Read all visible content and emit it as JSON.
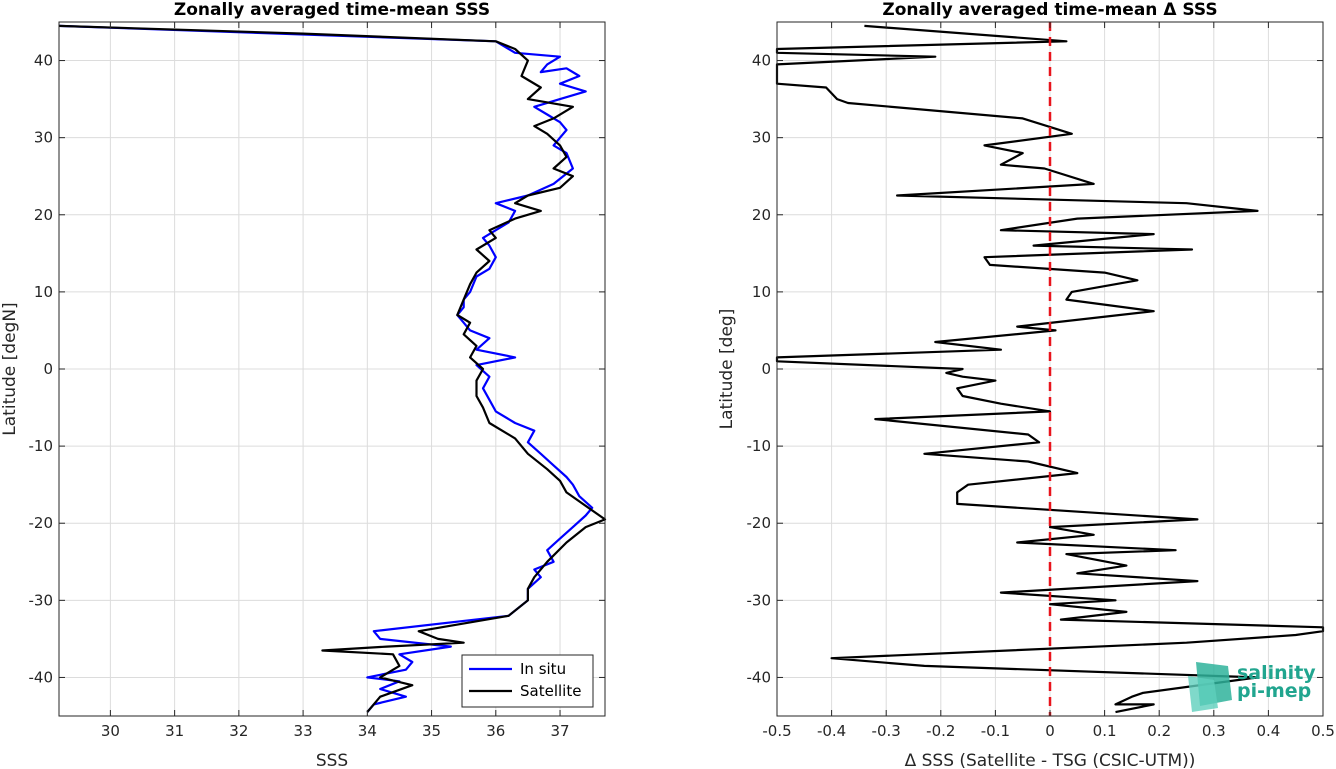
{
  "colors": {
    "in_situ": "#0000ff",
    "satellite": "#000000",
    "zero_line": "#e8141c",
    "grid": "#dcdcdc",
    "logo": "#21a58f"
  },
  "logo": {
    "line1": "salinity",
    "line2": "pi-mep"
  },
  "chart_data": [
    {
      "type": "line",
      "title": "Zonally averaged time-mean SSS",
      "xlabel": "SSS",
      "ylabel": "Latitude [degN]",
      "xlim": [
        29.2,
        37.7
      ],
      "ylim": [
        -45,
        45
      ],
      "xticks": [
        30,
        31,
        32,
        33,
        34,
        35,
        36,
        37
      ],
      "yticks": [
        -40,
        -30,
        -20,
        -10,
        0,
        10,
        20,
        30,
        40
      ],
      "xtick_labels": [
        "30",
        "31",
        "32",
        "33",
        "34",
        "35",
        "36",
        "37"
      ],
      "ytick_labels": [
        "-40",
        "-30",
        "-20",
        "-10",
        "0",
        "10",
        "20",
        "30",
        "40"
      ],
      "grid": true,
      "legend": {
        "placement": "bottom-right",
        "entries": [
          "In situ",
          "Satellite"
        ]
      },
      "series": [
        {
          "name": "In situ",
          "color": "#0000ff",
          "x": [
            29.2,
            36.0,
            36.3,
            37.0,
            36.8,
            36.7,
            37.1,
            37.3,
            37.0,
            37.4,
            37.0,
            36.6,
            36.8,
            37.0,
            37.1,
            37.0,
            36.9,
            37.1,
            37.2,
            36.9,
            36.5,
            36.0,
            36.3,
            36.2,
            36.0,
            35.8,
            35.9,
            36.0,
            35.9,
            35.7,
            35.6,
            35.5,
            35.5,
            35.4,
            35.5,
            35.6,
            35.9,
            35.7,
            36.3,
            35.7,
            35.9,
            35.8,
            35.9,
            36.0,
            36.3,
            36.6,
            36.5,
            36.7,
            36.9,
            37.1,
            37.2,
            37.3,
            37.5,
            37.4,
            37.2,
            37.0,
            36.8,
            36.9,
            36.6,
            36.7,
            36.5,
            36.5,
            36.2,
            34.1,
            34.2,
            35.3,
            34.5,
            34.7,
            34.6,
            34.0,
            34.5,
            34.2,
            34.6,
            34.1,
            34.0
          ],
          "y": [
            44.5,
            42.5,
            41.0,
            40.5,
            39.5,
            38.5,
            39.0,
            38.0,
            37.0,
            36.0,
            35.0,
            34.0,
            33.0,
            32.0,
            31.0,
            30.0,
            29.0,
            28.0,
            26.0,
            24.0,
            22.5,
            21.5,
            20.5,
            19.0,
            18.0,
            17.0,
            16.0,
            14.5,
            13.0,
            12.0,
            10.0,
            9.0,
            8.0,
            7.0,
            6.0,
            5.0,
            4.0,
            2.5,
            1.5,
            0.5,
            -1.0,
            -2.5,
            -4.0,
            -5.5,
            -7.0,
            -8.0,
            -9.5,
            -11.0,
            -12.5,
            -14.0,
            -15.0,
            -16.5,
            -18.0,
            -19.0,
            -20.5,
            -22.0,
            -23.5,
            -25.0,
            -26.0,
            -27.0,
            -28.5,
            -30.0,
            -32.0,
            -34.0,
            -35.0,
            -36.0,
            -37.0,
            -38.0,
            -39.0,
            -40.0,
            -40.5,
            -41.5,
            -42.5,
            -43.5,
            -44.5
          ]
        },
        {
          "name": "Satellite",
          "color": "#000000",
          "x": [
            29.2,
            33.0,
            36.0,
            36.3,
            36.5,
            36.4,
            36.7,
            36.5,
            37.2,
            36.9,
            36.6,
            36.8,
            37.0,
            37.1,
            36.9,
            37.2,
            37.0,
            36.5,
            36.3,
            36.7,
            36.3,
            35.9,
            36.0,
            35.7,
            35.9,
            35.7,
            35.6,
            35.5,
            35.4,
            35.6,
            35.5,
            35.7,
            35.6,
            35.8,
            35.7,
            35.7,
            35.8,
            35.9,
            36.3,
            36.5,
            36.8,
            37.0,
            37.1,
            37.7,
            37.4,
            37.1,
            36.8,
            36.6,
            36.5,
            36.5,
            36.2,
            34.8,
            35.1,
            35.5,
            34.3,
            33.3,
            34.4,
            34.5,
            34.2,
            34.7,
            34.2,
            34.0
          ],
          "y": [
            44.5,
            43.5,
            42.5,
            41.5,
            40.0,
            38.0,
            36.5,
            35.0,
            34.0,
            32.5,
            31.5,
            30.5,
            29.0,
            27.5,
            26.0,
            25.0,
            23.5,
            22.5,
            21.5,
            20.5,
            19.5,
            18.0,
            17.0,
            15.5,
            14.0,
            12.5,
            11.0,
            9.0,
            7.0,
            6.0,
            4.5,
            3.0,
            1.5,
            0.0,
            -1.5,
            -3.5,
            -5.0,
            -7.0,
            -9.0,
            -11.0,
            -13.0,
            -14.5,
            -16.0,
            -19.5,
            -20.5,
            -22.5,
            -25.0,
            -27.0,
            -28.5,
            -30.0,
            -32.0,
            -34.0,
            -35.0,
            -35.5,
            -36.0,
            -36.5,
            -37.0,
            -38.5,
            -40.0,
            -41.0,
            -42.5,
            -44.5
          ]
        }
      ]
    },
    {
      "type": "line",
      "title": "Zonally averaged time-mean Δ SSS",
      "xlabel": "Δ SSS (Satellite - TSG (CSIC-UTM))",
      "ylabel": "Latitude [deg]",
      "xlim": [
        -0.5,
        0.5
      ],
      "ylim": [
        -45,
        45
      ],
      "xticks": [
        -0.5,
        -0.4,
        -0.3,
        -0.2,
        -0.1,
        0,
        0.1,
        0.2,
        0.3,
        0.4,
        0.5
      ],
      "yticks": [
        -40,
        -30,
        -20,
        -10,
        0,
        10,
        20,
        30,
        40
      ],
      "xtick_labels": [
        "-0.5",
        "-0.4",
        "-0.3",
        "-0.2",
        "-0.1",
        "0",
        "0.1",
        "0.2",
        "0.3",
        "0.4",
        "0.5"
      ],
      "ytick_labels": [
        "-40",
        "-30",
        "-20",
        "-10",
        "0",
        "10",
        "20",
        "30",
        "40"
      ],
      "grid": true,
      "reference_line": {
        "x": 0,
        "style": "dashed",
        "color": "#e8141c"
      },
      "series": [
        {
          "color": "#000000",
          "x": [
            -0.34,
            0.03,
            -0.5,
            -0.5,
            -0.21,
            -0.5,
            -0.5,
            -0.41,
            -0.39,
            -0.37,
            -0.05,
            0.04,
            -0.12,
            -0.05,
            -0.09,
            -0.01,
            0.08,
            -0.28,
            0.25,
            0.38,
            0.05,
            -0.09,
            0.19,
            -0.03,
            0.26,
            -0.12,
            -0.11,
            0.1,
            0.16,
            0.04,
            0.03,
            0.19,
            -0.06,
            0.01,
            -0.21,
            -0.09,
            -0.5,
            -0.5,
            -0.16,
            -0.19,
            -0.16,
            -0.1,
            -0.17,
            -0.16,
            -0.09,
            0.0,
            -0.32,
            -0.04,
            -0.02,
            -0.23,
            -0.04,
            0.05,
            -0.15,
            -0.17,
            -0.17,
            0.27,
            0.0,
            0.08,
            -0.06,
            0.23,
            0.03,
            0.14,
            0.05,
            0.27,
            -0.09,
            0.12,
            0.0,
            0.14,
            0.02,
            0.5,
            0.5,
            0.45,
            0.25,
            -0.4,
            -0.23,
            0.38,
            0.17,
            0.15,
            0.12,
            0.19,
            0.12
          ],
          "y": [
            44.5,
            42.5,
            41.5,
            41.0,
            40.5,
            39.5,
            37.0,
            36.5,
            35.0,
            34.5,
            32.5,
            30.5,
            29.0,
            28.0,
            26.5,
            26.0,
            24.0,
            22.5,
            21.5,
            20.5,
            19.5,
            18.0,
            17.5,
            16.0,
            15.5,
            14.5,
            13.5,
            12.5,
            11.5,
            10.0,
            9.0,
            7.5,
            5.5,
            5.0,
            3.5,
            2.5,
            1.5,
            1.0,
            0.0,
            -0.5,
            -1.0,
            -1.5,
            -2.5,
            -3.5,
            -4.5,
            -5.5,
            -6.5,
            -8.5,
            -9.5,
            -11.0,
            -12.0,
            -13.5,
            -15.0,
            -16.0,
            -17.5,
            -19.5,
            -20.5,
            -21.5,
            -22.5,
            -23.5,
            -24.0,
            -25.5,
            -26.5,
            -27.5,
            -29.0,
            -30.0,
            -30.5,
            -31.5,
            -32.5,
            -33.5,
            -34.0,
            -34.5,
            -35.5,
            -37.5,
            -38.5,
            -40.0,
            -42.0,
            -42.5,
            -43.5,
            -43.5,
            -44.5
          ]
        }
      ]
    }
  ]
}
